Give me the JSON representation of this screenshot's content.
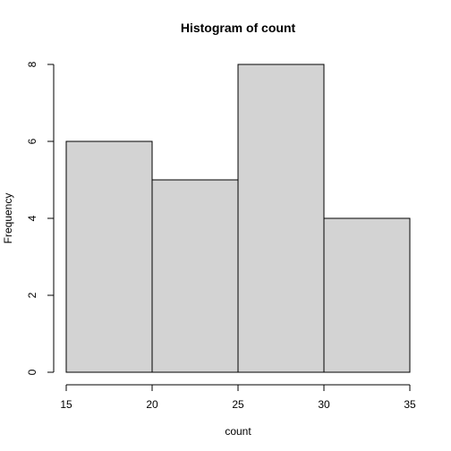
{
  "chart_data": {
    "type": "bar",
    "title": "Histogram of count",
    "xlabel": "count",
    "ylabel": "Frequency",
    "bins": [
      {
        "from": 15,
        "to": 20,
        "count": 6
      },
      {
        "from": 20,
        "to": 25,
        "count": 5
      },
      {
        "from": 25,
        "to": 30,
        "count": 8
      },
      {
        "from": 30,
        "to": 35,
        "count": 4
      }
    ],
    "x_ticks": [
      "15",
      "20",
      "25",
      "30",
      "35"
    ],
    "y_ticks": [
      "0",
      "2",
      "4",
      "6",
      "8"
    ],
    "xlim": [
      15,
      35
    ],
    "ylim": [
      0,
      8
    ],
    "grid": false,
    "colors": {
      "bar_fill": "#d3d3d3",
      "bar_stroke": "#000000"
    }
  }
}
